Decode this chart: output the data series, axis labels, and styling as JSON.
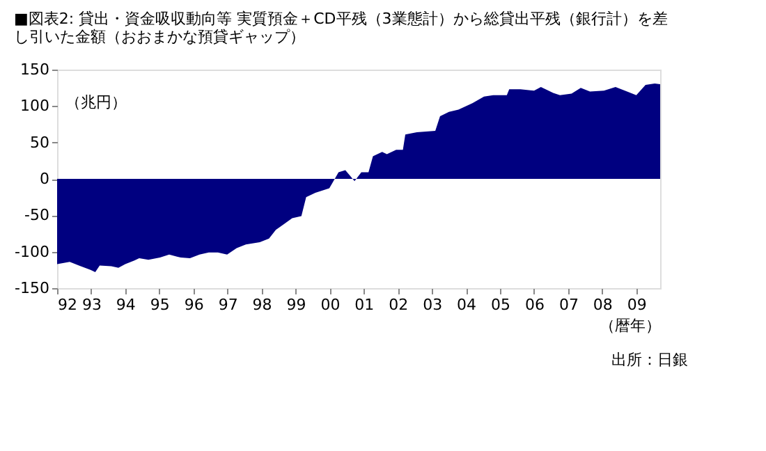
{
  "chart_data": {
    "type": "area",
    "title": "■図表2: 貸出・資金吸収動向等 実質預金＋CD平残（3業態計）から総貸出平残（銀行計）を差し引いた金額（おおまかな預貸ギャップ）",
    "ylabel": "（兆円）",
    "xlabel": "（暦年）",
    "annotations": [
      "出所：日銀"
    ],
    "x": [
      1992.0,
      1992.37,
      1992.64,
      1992.98,
      1993.12,
      1993.25,
      1993.59,
      1993.8,
      1994.0,
      1994.27,
      1994.41,
      1994.68,
      1995.02,
      1995.29,
      1995.63,
      1995.9,
      1996.18,
      1996.45,
      1996.72,
      1996.99,
      1997.27,
      1997.54,
      1997.95,
      1998.22,
      1998.42,
      1998.63,
      1998.9,
      1999.17,
      1999.31,
      1999.58,
      1999.99,
      2000.26,
      2000.46,
      2000.73,
      2000.93,
      2001.14,
      2001.27,
      2001.54,
      2001.68,
      2001.95,
      2002.15,
      2002.22,
      2002.56,
      2003.1,
      2003.24,
      2003.5,
      2003.78,
      2004.19,
      2004.53,
      2004.8,
      2005.2,
      2005.27,
      2005.6,
      2006.0,
      2006.2,
      2006.56,
      2006.76,
      2007.1,
      2007.37,
      2007.64,
      2008.05,
      2008.39,
      2008.73,
      2009.0,
      2009.27,
      2009.54,
      2009.7
    ],
    "series": [
      {
        "color": "#000080",
        "values": [
          -117,
          -114,
          -119,
          -125,
          -128,
          -119,
          -120,
          -122,
          -117,
          -112,
          -109,
          -111,
          -108,
          -104,
          -108,
          -109,
          -104,
          -101,
          -101,
          -104,
          -95,
          -90,
          -87,
          -82,
          -70,
          -63,
          -54,
          -51,
          -25,
          -19,
          -13,
          9,
          12,
          -3,
          9,
          9,
          31,
          37,
          34,
          40,
          40,
          61,
          64,
          66,
          86,
          92,
          95,
          104,
          113,
          115,
          115,
          123,
          123,
          121,
          126,
          118,
          115,
          117,
          125,
          120,
          121,
          126,
          120,
          115,
          129,
          131,
          130
        ]
      }
    ],
    "xlim": [
      1992,
      2009.7
    ],
    "xticks": [
      {
        "value": 1992,
        "label": "92"
      },
      {
        "value": 1993,
        "label": "93"
      },
      {
        "value": 1994,
        "label": "94"
      },
      {
        "value": 1995,
        "label": "95"
      },
      {
        "value": 1996,
        "label": "96"
      },
      {
        "value": 1997,
        "label": "97"
      },
      {
        "value": 1998,
        "label": "98"
      },
      {
        "value": 1999,
        "label": "99"
      },
      {
        "value": 2000,
        "label": "00"
      },
      {
        "value": 2001,
        "label": "01"
      },
      {
        "value": 2002,
        "label": "02"
      },
      {
        "value": 2003,
        "label": "03"
      },
      {
        "value": 2004,
        "label": "04"
      },
      {
        "value": 2005,
        "label": "05"
      },
      {
        "value": 2006,
        "label": "06"
      },
      {
        "value": 2007,
        "label": "07"
      },
      {
        "value": 2008,
        "label": "08"
      },
      {
        "value": 2009,
        "label": "09"
      }
    ],
    "ylim": [
      -150,
      150
    ],
    "yticks": [
      -150,
      -100,
      -50,
      0,
      50,
      100,
      150
    ]
  }
}
